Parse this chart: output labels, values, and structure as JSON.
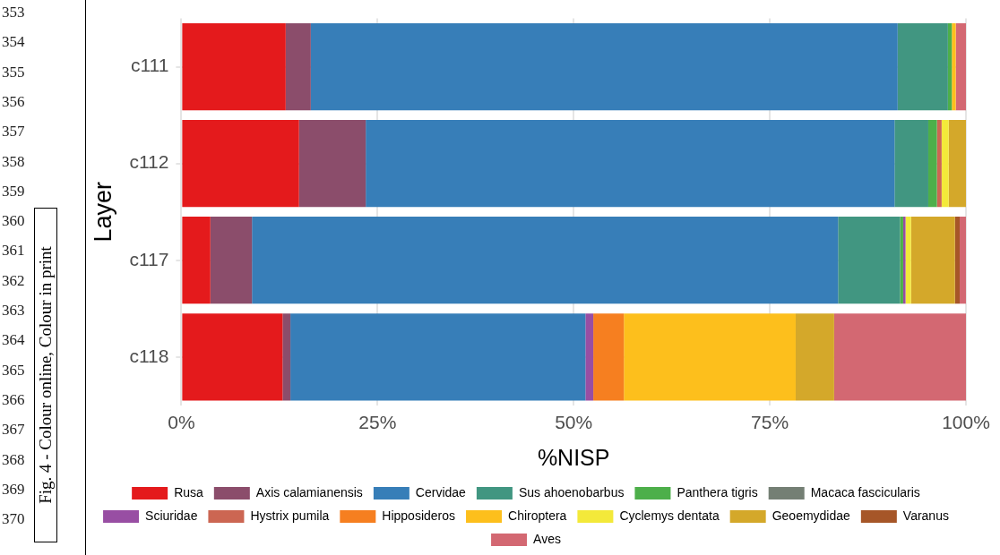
{
  "chart_data": {
    "type": "bar",
    "orientation": "horizontal",
    "stacked": true,
    "xlabel": "%NISP",
    "ylabel": "Layer",
    "categories": [
      "c111",
      "c112",
      "c117",
      "c118"
    ],
    "xlim": [
      0,
      100
    ],
    "xticks": [
      {
        "value": 0,
        "label": "0%"
      },
      {
        "value": 25,
        "label": "25%"
      },
      {
        "value": 50,
        "label": "50%"
      },
      {
        "value": 75,
        "label": "75%"
      },
      {
        "value": 100,
        "label": "100%"
      }
    ],
    "grid": true,
    "legend": "bottom",
    "series": [
      {
        "name": "Rusa",
        "color": "#e41a1c",
        "values": [
          13.3,
          15.0,
          3.7,
          12.9
        ]
      },
      {
        "name": "Axis calamianensis",
        "color": "#8b4d6b",
        "values": [
          3.2,
          8.5,
          5.3,
          1.0
        ]
      },
      {
        "name": "Cervidae",
        "color": "#377eb8",
        "values": [
          74.8,
          67.4,
          74.7,
          37.6
        ]
      },
      {
        "name": "Sus ahoenobarbus",
        "color": "#419681",
        "values": [
          6.4,
          4.3,
          7.9,
          null
        ]
      },
      {
        "name": "Panthera tigris",
        "color": "#4daf4a",
        "values": [
          0.5,
          1.1,
          0.4,
          null
        ]
      },
      {
        "name": "Macaca fascicularis",
        "color": "#747f74",
        "values": [
          null,
          null,
          null,
          null
        ]
      },
      {
        "name": "Sciuridae",
        "color": "#984ea3",
        "values": [
          null,
          null,
          0.3,
          1.0
        ]
      },
      {
        "name": "Hystrix pumila",
        "color": "#cc6652",
        "values": [
          null,
          0.6,
          null,
          null
        ]
      },
      {
        "name": "Hipposideros",
        "color": "#f67f20",
        "values": [
          null,
          null,
          null,
          3.9
        ]
      },
      {
        "name": "Chiroptera",
        "color": "#fdbf1c",
        "values": [
          0.5,
          null,
          null,
          21.9
        ]
      },
      {
        "name": "Cyclemys dentata",
        "color": "#f3e93a",
        "values": [
          null,
          0.9,
          0.7,
          null
        ]
      },
      {
        "name": "Geoemydidae",
        "color": "#d4a82a",
        "values": [
          null,
          2.2,
          5.6,
          4.9
        ]
      },
      {
        "name": "Varanus",
        "color": "#a65628",
        "values": [
          null,
          null,
          0.6,
          null
        ]
      },
      {
        "name": "Aves",
        "color": "#d36872",
        "values": [
          1.3,
          null,
          0.8,
          16.8
        ]
      }
    ],
    "annotations": [
      "Fig. 4 - Colour online, Colour in print",
      "353",
      "354",
      "355",
      "356",
      "357",
      "358",
      "359",
      "360",
      "361",
      "362",
      "363",
      "364",
      "365",
      "366",
      "367",
      "368",
      "369",
      "370"
    ]
  }
}
